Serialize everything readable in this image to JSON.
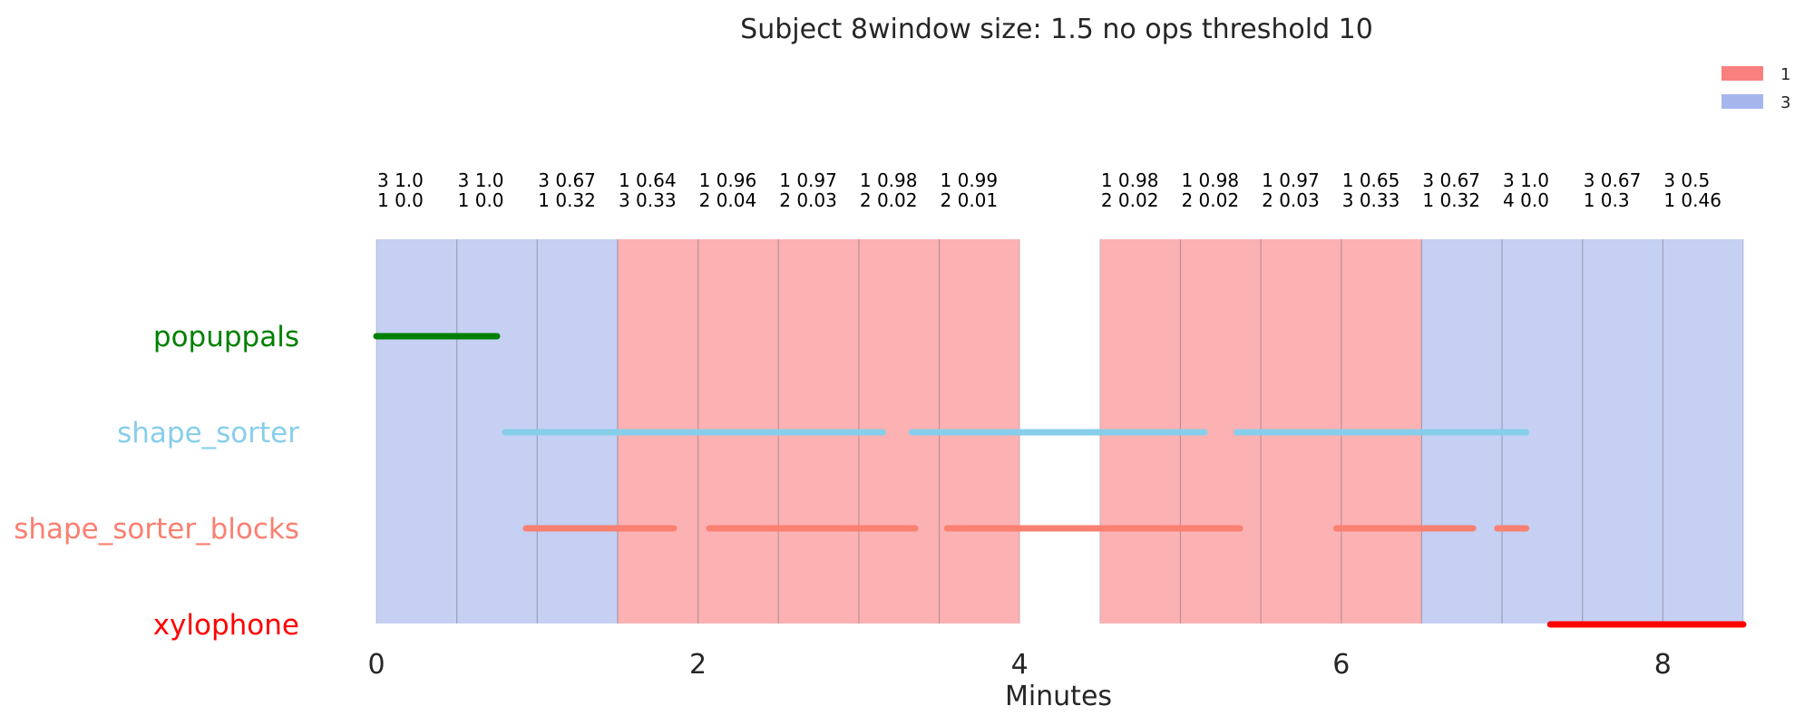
{
  "chart_data": {
    "type": "timeline",
    "title": "Subject 8window size: 1.5 no ops threshold 10",
    "xlabel": "Minutes",
    "xlim": [
      0,
      8.5
    ],
    "xticks": [
      0,
      2,
      4,
      6,
      8
    ],
    "legend": {
      "placement": "top-right",
      "items": [
        {
          "label": "1",
          "color": "#fa8080"
        },
        {
          "label": "3",
          "color": "#a4b6ec"
        }
      ]
    },
    "window_colors": {
      "1": "#fcb1b2",
      "3": "#c5d0f2"
    },
    "windows": [
      {
        "start": 0.0,
        "end": 0.5,
        "class": "3",
        "label1": "3 1.0",
        "label2": "1 0.0"
      },
      {
        "start": 0.5,
        "end": 1.0,
        "class": "3",
        "label1": "3 1.0",
        "label2": "1 0.0"
      },
      {
        "start": 1.0,
        "end": 1.5,
        "class": "3",
        "label1": "3 0.67",
        "label2": "1 0.32"
      },
      {
        "start": 1.5,
        "end": 2.0,
        "class": "1",
        "label1": "1 0.64",
        "label2": "3 0.33"
      },
      {
        "start": 2.0,
        "end": 2.5,
        "class": "1",
        "label1": "1 0.96",
        "label2": "2 0.04"
      },
      {
        "start": 2.5,
        "end": 3.0,
        "class": "1",
        "label1": "1 0.97",
        "label2": "2 0.03"
      },
      {
        "start": 3.0,
        "end": 3.5,
        "class": "1",
        "label1": "1 0.98",
        "label2": "2 0.02"
      },
      {
        "start": 3.5,
        "end": 4.0,
        "class": "1",
        "label1": "1 0.99",
        "label2": "2 0.01"
      },
      {
        "start": 4.5,
        "end": 5.0,
        "class": "1",
        "label1": "1 0.98",
        "label2": "2 0.02"
      },
      {
        "start": 5.0,
        "end": 5.5,
        "class": "1",
        "label1": "1 0.98",
        "label2": "2 0.02"
      },
      {
        "start": 5.5,
        "end": 6.0,
        "class": "1",
        "label1": "1 0.97",
        "label2": "2 0.03"
      },
      {
        "start": 6.0,
        "end": 6.5,
        "class": "1",
        "label1": "1 0.65",
        "label2": "3 0.33"
      },
      {
        "start": 6.5,
        "end": 7.0,
        "class": "3",
        "label1": "3 0.67",
        "label2": "1 0.32"
      },
      {
        "start": 7.0,
        "end": 7.5,
        "class": "3",
        "label1": "3 1.0",
        "label2": "4 0.0"
      },
      {
        "start": 7.5,
        "end": 8.0,
        "class": "3",
        "label1": "3 0.67",
        "label2": "1 0.3"
      },
      {
        "start": 8.0,
        "end": 8.5,
        "class": "3",
        "label1": "3 0.5",
        "label2": "1 0.46"
      }
    ],
    "series": [
      {
        "name": "popuppals",
        "color": "#008000",
        "segments": [
          [
            0.0,
            0.75
          ]
        ]
      },
      {
        "name": "shape_sorter",
        "color": "#87ceeb",
        "segments": [
          [
            0.8,
            3.15
          ],
          [
            3.33,
            5.15
          ],
          [
            5.35,
            7.15
          ]
        ]
      },
      {
        "name": "shape_sorter_blocks",
        "color": "#fa8072",
        "segments": [
          [
            0.93,
            1.85
          ],
          [
            2.07,
            3.35
          ],
          [
            3.55,
            5.37
          ],
          [
            5.97,
            6.82
          ],
          [
            6.97,
            7.15
          ]
        ]
      },
      {
        "name": "xylophone",
        "color": "#ff0000",
        "segments": [
          [
            7.3,
            8.5
          ]
        ]
      }
    ]
  }
}
